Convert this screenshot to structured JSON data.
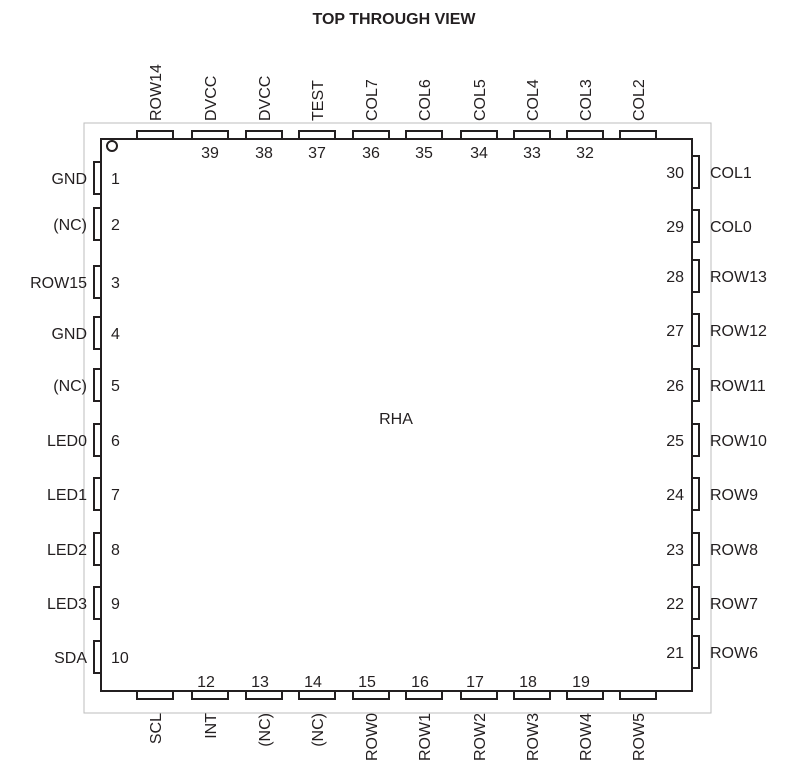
{
  "title": "TOP THROUGH VIEW",
  "package_label": "RHA",
  "colors": {
    "body_stroke": "#231f20",
    "outline_stroke": "#bdbdbd",
    "text": "#231f20"
  },
  "pins": {
    "left": [
      {
        "num": "1",
        "name": "GND"
      },
      {
        "num": "2",
        "name": "(NC)"
      },
      {
        "num": "3",
        "name": "ROW15"
      },
      {
        "num": "4",
        "name": "GND"
      },
      {
        "num": "5",
        "name": "(NC)"
      },
      {
        "num": "6",
        "name": "LED0"
      },
      {
        "num": "7",
        "name": "LED1"
      },
      {
        "num": "8",
        "name": "LED2"
      },
      {
        "num": "9",
        "name": "LED3"
      },
      {
        "num": "10",
        "name": "SDA"
      }
    ],
    "bottom": [
      {
        "num": "",
        "name": "SCL"
      },
      {
        "num": "12",
        "name": "INT"
      },
      {
        "num": "13",
        "name": "(NC)"
      },
      {
        "num": "14",
        "name": "(NC)"
      },
      {
        "num": "15",
        "name": "ROW0"
      },
      {
        "num": "16",
        "name": "ROW1"
      },
      {
        "num": "17",
        "name": "ROW2"
      },
      {
        "num": "18",
        "name": "ROW3"
      },
      {
        "num": "19",
        "name": "ROW4"
      },
      {
        "num": "",
        "name": "ROW5"
      }
    ],
    "right": [
      {
        "num": "30",
        "name": "COL1"
      },
      {
        "num": "29",
        "name": "COL0"
      },
      {
        "num": "28",
        "name": "ROW13"
      },
      {
        "num": "27",
        "name": "ROW12"
      },
      {
        "num": "26",
        "name": "ROW11"
      },
      {
        "num": "25",
        "name": "ROW10"
      },
      {
        "num": "24",
        "name": "ROW9"
      },
      {
        "num": "23",
        "name": "ROW8"
      },
      {
        "num": "22",
        "name": "ROW7"
      },
      {
        "num": "21",
        "name": "ROW6"
      }
    ],
    "top": [
      {
        "num": "",
        "name": "ROW14"
      },
      {
        "num": "39",
        "name": "DVCC"
      },
      {
        "num": "38",
        "name": "DVCC"
      },
      {
        "num": "37",
        "name": "TEST"
      },
      {
        "num": "36",
        "name": "COL7"
      },
      {
        "num": "35",
        "name": "COL6"
      },
      {
        "num": "34",
        "name": "COL5"
      },
      {
        "num": "33",
        "name": "COL4"
      },
      {
        "num": "32",
        "name": "COL3"
      },
      {
        "num": "",
        "name": "COL2"
      }
    ]
  }
}
